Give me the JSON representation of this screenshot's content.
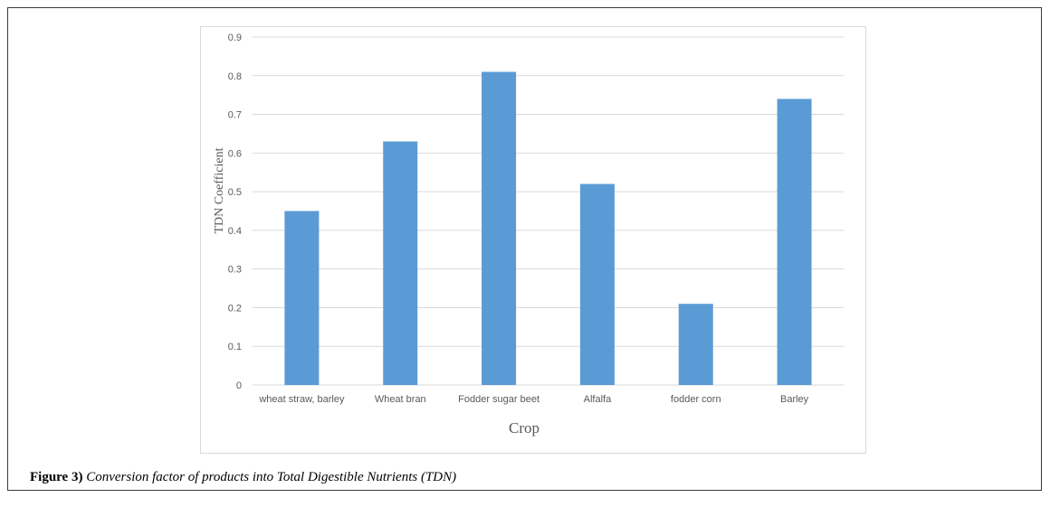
{
  "chart_data": {
    "type": "bar",
    "categories": [
      "wheat straw, barley",
      "Wheat bran",
      "Fodder sugar beet",
      "Alfalfa",
      "fodder corn",
      "Barley"
    ],
    "values": [
      0.45,
      0.63,
      0.81,
      0.52,
      0.21,
      0.74
    ],
    "xlabel": "Crop",
    "ylabel": "TDN Coefficient",
    "ylim": [
      0,
      0.9
    ],
    "yticks": [
      "0",
      "0.1",
      "0.2",
      "0.3",
      "0.4",
      "0.5",
      "0.6",
      "0.7",
      "0.8",
      "0.9"
    ],
    "grid": true,
    "bar_color": "#5b9bd5",
    "grid_color": "#d9d9d9"
  },
  "caption": {
    "label": "Figure 3)",
    "text": "Conversion factor of products into Total Digestible Nutrients (TDN)"
  }
}
